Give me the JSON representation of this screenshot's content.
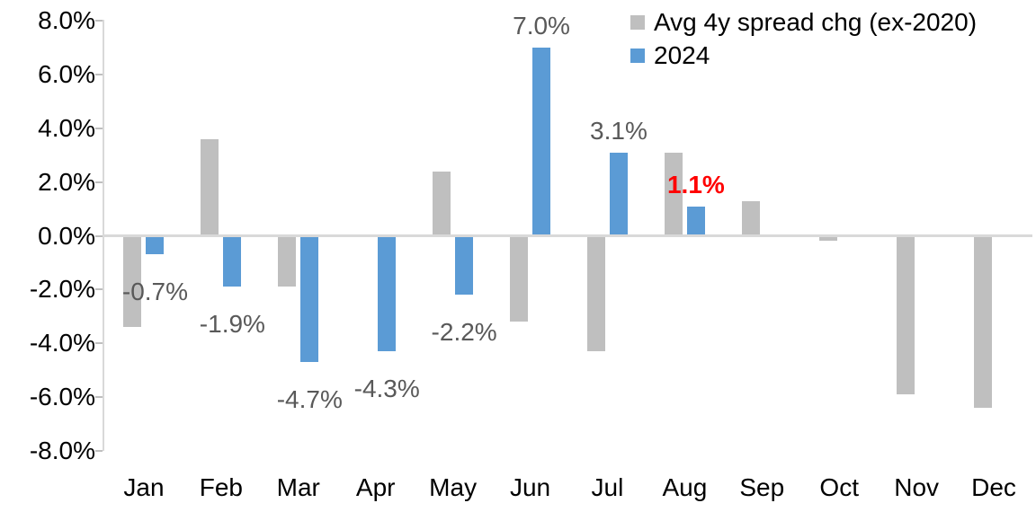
{
  "chart_data": {
    "type": "bar",
    "categories": [
      "Jan",
      "Feb",
      "Mar",
      "Apr",
      "May",
      "Jun",
      "Jul",
      "Aug",
      "Sep",
      "Oct",
      "Nov",
      "Dec"
    ],
    "series": [
      {
        "name": "Avg 4y spread chg (ex-2020)",
        "key": "avg",
        "color": "#bfbfbf",
        "values": [
          -3.4,
          3.6,
          -1.9,
          0.0,
          2.4,
          -3.2,
          -4.3,
          3.1,
          1.3,
          -0.2,
          -5.9,
          -6.4
        ]
      },
      {
        "name": "2024",
        "key": "2024",
        "color": "#5b9bd5",
        "values": [
          -0.7,
          -1.9,
          -4.7,
          -4.3,
          -2.2,
          7.0,
          3.1,
          1.1,
          null,
          null,
          null,
          null
        ]
      }
    ],
    "data_labels": [
      {
        "category": "Jan",
        "text": "-0.7%",
        "color": "#595959",
        "bold": false
      },
      {
        "category": "Feb",
        "text": "-1.9%",
        "color": "#595959",
        "bold": false
      },
      {
        "category": "Mar",
        "text": "-4.7%",
        "color": "#595959",
        "bold": false
      },
      {
        "category": "Apr",
        "text": "-4.3%",
        "color": "#595959",
        "bold": false
      },
      {
        "category": "May",
        "text": "-2.2%",
        "color": "#595959",
        "bold": false
      },
      {
        "category": "Jun",
        "text": "7.0%",
        "color": "#595959",
        "bold": false
      },
      {
        "category": "Jul",
        "text": "3.1%",
        "color": "#595959",
        "bold": false
      },
      {
        "category": "Aug",
        "text": "1.1%",
        "color": "#ff0000",
        "bold": true
      }
    ],
    "y_axis": {
      "ticks": [
        "8.0%",
        "6.0%",
        "4.0%",
        "2.0%",
        "0.0%",
        "-2.0%",
        "-4.0%",
        "-6.0%",
        "-8.0%"
      ],
      "tick_values": [
        8,
        6,
        4,
        2,
        0,
        -2,
        -4,
        -6,
        -8
      ],
      "min": -8,
      "max": 8,
      "grid": "off"
    },
    "legend": [
      {
        "label": "Avg 4y spread chg (ex-2020)",
        "color": "#bfbfbf"
      },
      {
        "label": "2024",
        "color": "#5b9bd5"
      }
    ],
    "legend_position": "top-right",
    "title": "",
    "xlabel": "",
    "ylabel": "",
    "colors": {
      "bar_gray": "#bfbfbf",
      "bar_blue": "#5b9bd5",
      "data_label": "#595959",
      "emphasis_label": "#ff0000",
      "axis_line": "#d9d9d9",
      "tick_mark": "#bfbfbf",
      "tick_text": "#000000"
    }
  }
}
